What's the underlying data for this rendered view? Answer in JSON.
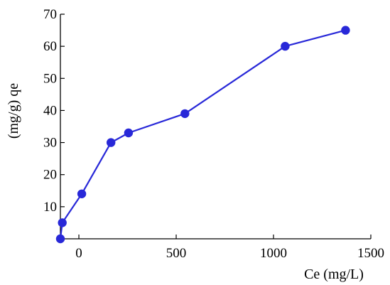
{
  "chart_data": {
    "type": "line",
    "title": "",
    "xlabel": "Ce (mg/L)",
    "ylabel": "(mg/g) qe",
    "xlim": [
      -95,
      1500
    ],
    "ylim": [
      0,
      70
    ],
    "x_ticks": [
      0,
      500,
      1000,
      1500
    ],
    "y_ticks": [
      10,
      20,
      30,
      40,
      50,
      60,
      70
    ],
    "x_tick_labels": [
      "0",
      "500",
      "1000",
      "1500"
    ],
    "y_tick_labels": [
      "10",
      "20",
      "30",
      "40",
      "50",
      "60",
      "70"
    ],
    "grid": false,
    "legend": "none",
    "series": [
      {
        "color": "#2828d8",
        "x": [
          -95,
          -85,
          15,
          165,
          255,
          545,
          1060,
          1370
        ],
        "y": [
          0,
          5,
          14,
          30,
          33,
          39,
          60,
          65
        ]
      }
    ]
  }
}
